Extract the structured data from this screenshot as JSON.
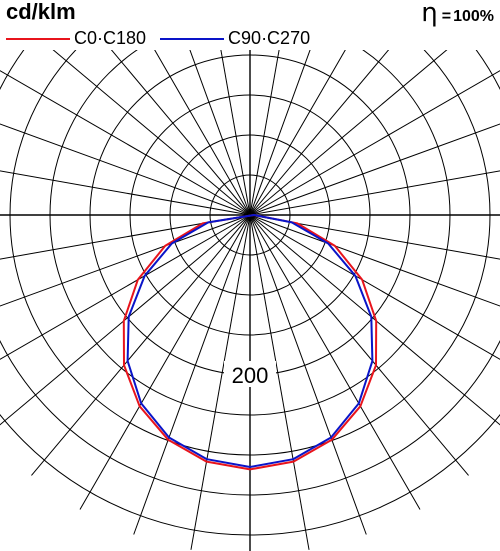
{
  "header": {
    "unit": "cd/klm",
    "efficiency_symbol": "η",
    "efficiency_equals": "=",
    "efficiency_value": "100%"
  },
  "chart_data": {
    "type": "polar",
    "unit": "cd/klm",
    "radial_max": 300,
    "radial_ticks": [
      50,
      100,
      150,
      200,
      250,
      300
    ],
    "radial_tick_labels_shown": [
      "200"
    ],
    "angle_step_deg": 10,
    "grid": true,
    "angles_deg": [
      0,
      10,
      20,
      30,
      40,
      50,
      60,
      70,
      80,
      90
    ],
    "series": [
      {
        "name": "C0·C180",
        "color": "#e8141c",
        "values": [
          318,
          313,
          299,
          276,
          245,
          206,
          162,
          113,
          60,
          5
        ]
      },
      {
        "name": "C90·C270",
        "color": "#0a14c8",
        "values": [
          315,
          310,
          296,
          272,
          238,
          198,
          152,
          104,
          53,
          5
        ]
      }
    ]
  }
}
